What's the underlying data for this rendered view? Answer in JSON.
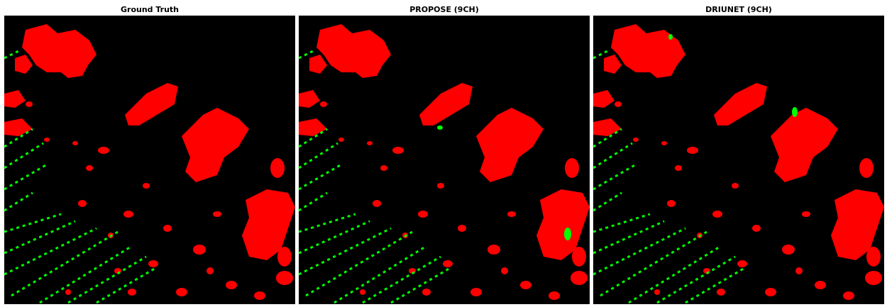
{
  "panels": [
    {
      "title": "Ground Truth"
    },
    {
      "title": "PROPOSE (9CH)"
    },
    {
      "title": "DRIUNET (9CH)"
    }
  ]
}
